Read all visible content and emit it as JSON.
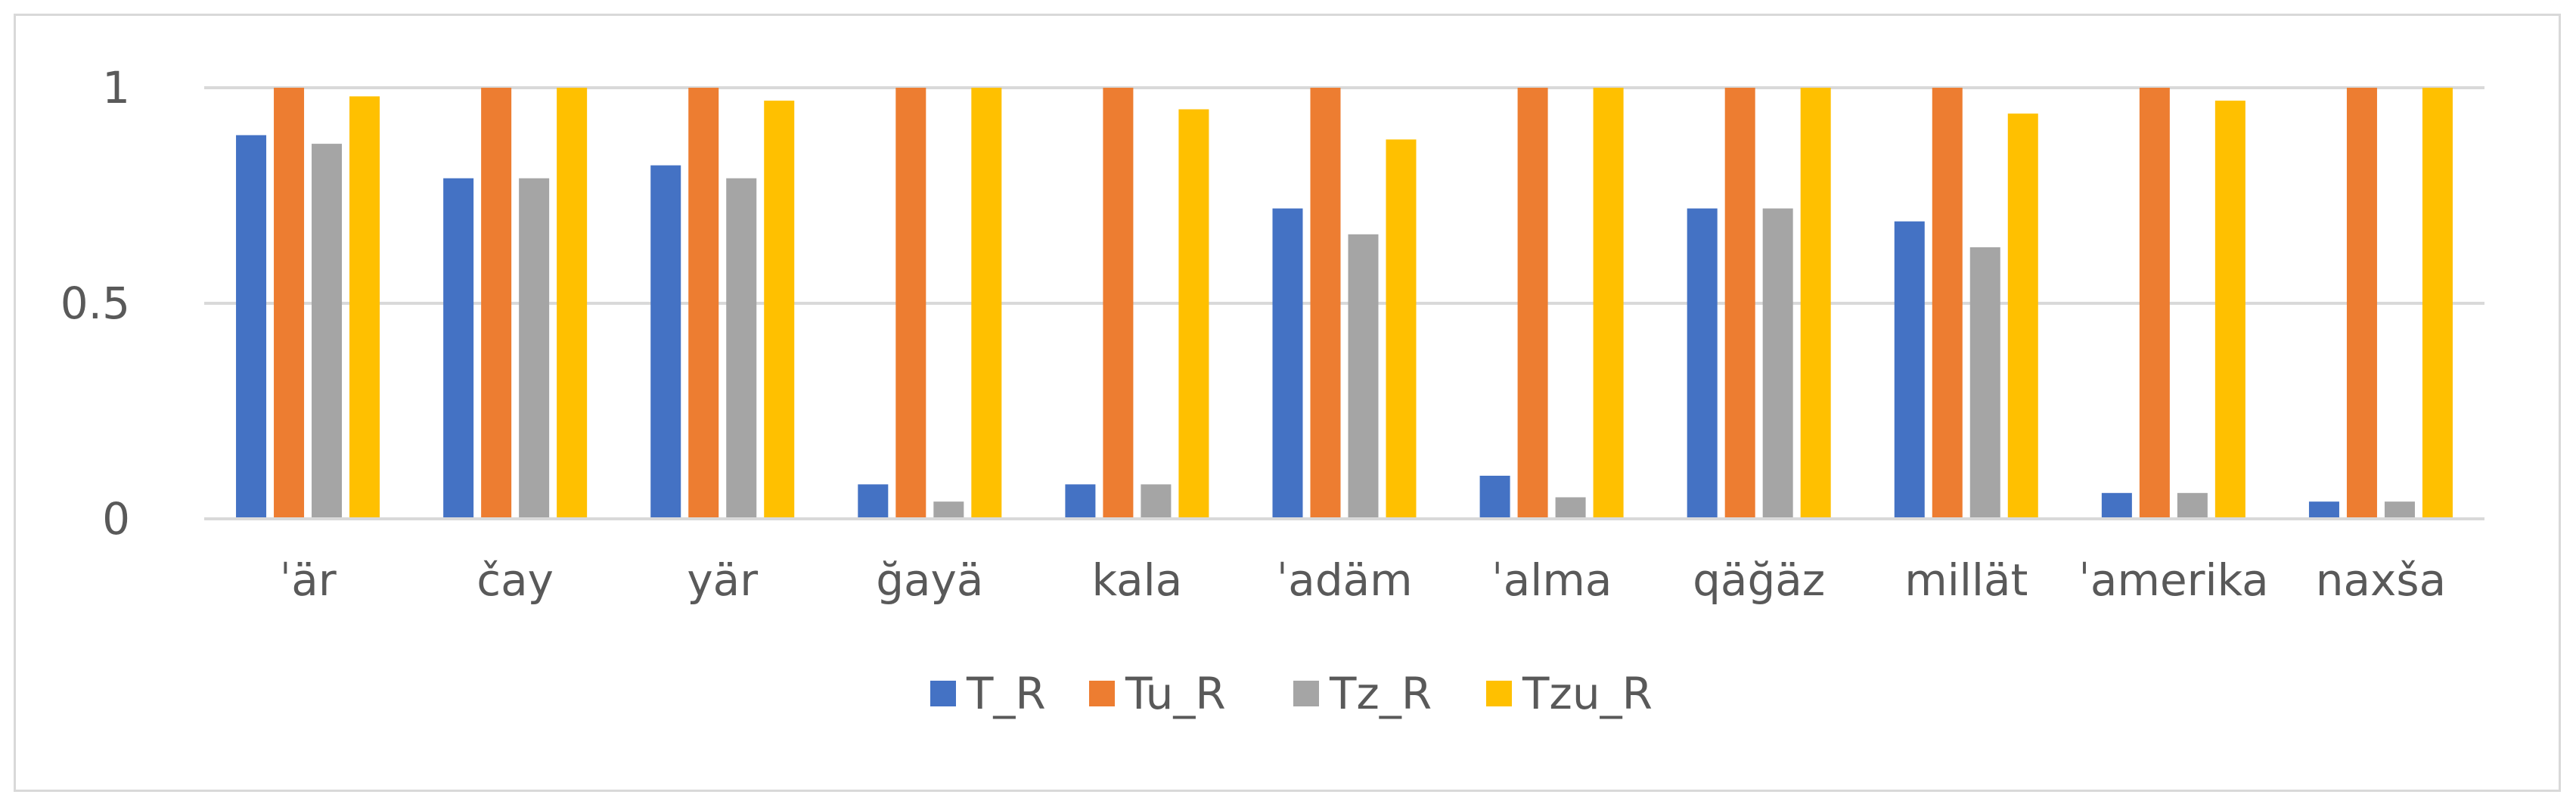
{
  "chart_data": {
    "type": "bar",
    "title": "",
    "xlabel": "",
    "ylabel": "",
    "ylim": [
      0,
      1
    ],
    "yticks": [
      {
        "value": 0,
        "label": "0"
      },
      {
        "value": 0.5,
        "label": "0.5"
      },
      {
        "value": 1,
        "label": "1"
      }
    ],
    "grid": true,
    "legend": "bottom",
    "categories": [
      "ˈär",
      "čay",
      "yär",
      "ğayä",
      "kala",
      "ˈadäm",
      "ˈalma",
      "qäğäz",
      "millät",
      "ˈamerika",
      "naxša"
    ],
    "series": [
      {
        "name": "T_R",
        "color": "#4472C4",
        "values": [
          0.89,
          0.79,
          0.82,
          0.08,
          0.08,
          0.72,
          0.1,
          0.72,
          0.69,
          0.06,
          0.04
        ]
      },
      {
        "name": "Tu_R",
        "color": "#ED7D31",
        "values": [
          1,
          1,
          1,
          1,
          1,
          1,
          1,
          1,
          1,
          1,
          1
        ]
      },
      {
        "name": "Tz_R",
        "color": "#A5A5A5",
        "values": [
          0.87,
          0.79,
          0.79,
          0.04,
          0.08,
          0.66,
          0.05,
          0.72,
          0.63,
          0.06,
          0.04
        ]
      },
      {
        "name": "Tzu_R",
        "color": "#FFC000",
        "values": [
          0.98,
          1,
          0.97,
          1,
          0.95,
          0.88,
          1,
          1,
          0.94,
          0.97,
          1
        ]
      }
    ]
  }
}
